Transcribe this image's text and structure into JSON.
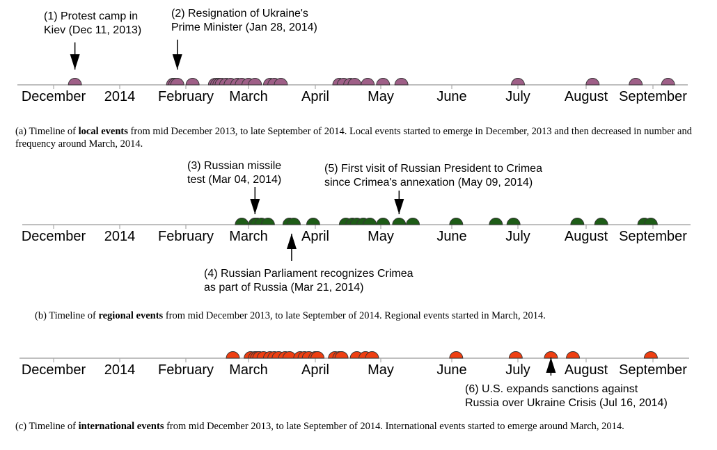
{
  "chart_data": [
    {
      "type": "timeline",
      "series": [
        {
          "name": "local events",
          "color": "#9e5f87"
        }
      ],
      "tick_labels": [
        "December",
        "2014",
        "February",
        "March",
        "April",
        "May",
        "June",
        "July",
        "August",
        "September"
      ],
      "tick_dates": [
        "2013-12-01",
        "2014-01-01",
        "2014-02-01",
        "2014-03-01",
        "2014-04-01",
        "2014-05-01",
        "2014-06-01",
        "2014-07-01",
        "2014-08-01",
        "2014-09-01"
      ],
      "events": [
        "2013-12-11",
        "2014-01-26",
        "2014-01-27",
        "2014-01-28",
        "2014-02-04",
        "2014-02-14",
        "2014-02-15",
        "2014-02-16",
        "2014-02-17",
        "2014-02-19",
        "2014-02-21",
        "2014-02-24",
        "2014-02-26",
        "2014-03-01",
        "2014-03-04",
        "2014-03-11",
        "2014-03-13",
        "2014-03-16",
        "2014-04-12",
        "2014-04-14",
        "2014-04-17",
        "2014-04-19",
        "2014-04-25",
        "2014-05-02",
        "2014-05-10",
        "2014-07-01",
        "2014-08-04",
        "2014-08-24",
        "2014-09-08"
      ],
      "annotations": [
        {
          "lines": [
            "(1) Protest camp in",
            "Kiev (Dec 11, 2013)"
          ],
          "date": "2013-12-11",
          "arrow": "down"
        },
        {
          "lines": [
            "(2) Resignation of Ukraine's",
            "Prime Minister (Jan 28, 2014)"
          ],
          "date": "2014-01-28",
          "arrow": "down"
        }
      ],
      "caption": {
        "pre": "(a) Timeline of ",
        "bold": "local events",
        "post": " from mid December 2013, to late September of 2014. Local events started to emerge in December, 2013 and then decreased in number and frequency around March, 2014."
      }
    },
    {
      "type": "timeline",
      "series": [
        {
          "name": "regional events",
          "color": "#1e5c17"
        }
      ],
      "tick_labels": [
        "December",
        "2014",
        "February",
        "March",
        "April",
        "May",
        "June",
        "July",
        "August",
        "September"
      ],
      "tick_dates": [
        "2013-12-01",
        "2014-01-01",
        "2014-02-01",
        "2014-03-01",
        "2014-04-01",
        "2014-05-01",
        "2014-06-01",
        "2014-07-01",
        "2014-08-01",
        "2014-09-01"
      ],
      "events": [
        "2014-02-26",
        "2014-03-04",
        "2014-03-05",
        "2014-03-07",
        "2014-03-10",
        "2014-03-20",
        "2014-03-22",
        "2014-03-31",
        "2014-04-15",
        "2014-04-18",
        "2014-04-20",
        "2014-04-23",
        "2014-04-26",
        "2014-05-02",
        "2014-05-09",
        "2014-05-15",
        "2014-06-03",
        "2014-06-21",
        "2014-06-29",
        "2014-07-28",
        "2014-08-08",
        "2014-08-28",
        "2014-08-31"
      ],
      "annotations": [
        {
          "lines": [
            "(3) Russian missile",
            "test (Mar 04, 2014)"
          ],
          "date": "2014-03-04",
          "arrow": "down"
        },
        {
          "lines": [
            "(4) Russian Parliament recognizes Crimea",
            "as part of Russia (Mar 21, 2014)"
          ],
          "date": "2014-03-21",
          "arrow": "up"
        },
        {
          "lines": [
            "(5) First visit of Russian President to Crimea",
            "since Crimea's annexation (May 09, 2014)"
          ],
          "date": "2014-05-09",
          "arrow": "down"
        }
      ],
      "caption": {
        "pre": "(b) Timeline of ",
        "bold": "regional events",
        "post": " from mid December 2013, to late September of 2014. Regional events started in March, 2014."
      }
    },
    {
      "type": "timeline",
      "series": [
        {
          "name": "international events",
          "color": "#ee3f12"
        }
      ],
      "tick_labels": [
        "December",
        "2014",
        "February",
        "March",
        "April",
        "May",
        "June",
        "July",
        "August",
        "September"
      ],
      "tick_dates": [
        "2013-12-01",
        "2014-01-01",
        "2014-02-01",
        "2014-03-01",
        "2014-04-01",
        "2014-05-01",
        "2014-06-01",
        "2014-07-01",
        "2014-08-01",
        "2014-09-01"
      ],
      "events": [
        "2014-02-22",
        "2014-03-02",
        "2014-03-04",
        "2014-03-05",
        "2014-03-06",
        "2014-03-08",
        "2014-03-11",
        "2014-03-13",
        "2014-03-15",
        "2014-03-18",
        "2014-03-20",
        "2014-03-25",
        "2014-03-27",
        "2014-03-29",
        "2014-04-01",
        "2014-04-02",
        "2014-04-10",
        "2014-04-12",
        "2014-04-13",
        "2014-04-20",
        "2014-04-24",
        "2014-04-27",
        "2014-06-03",
        "2014-06-30",
        "2014-07-16",
        "2014-07-26",
        "2014-08-31"
      ],
      "annotations": [
        {
          "lines": [
            "(6) U.S. expands sanctions against",
            "Russia over Ukraine Crisis (Jul 16, 2014)"
          ],
          "date": "2014-07-16",
          "arrow": "up"
        }
      ],
      "caption": {
        "pre": "(c) Timeline of ",
        "bold": "international events",
        "post": " from mid December 2013, to late September of 2014. International events started to emerge around March, 2014."
      }
    }
  ]
}
